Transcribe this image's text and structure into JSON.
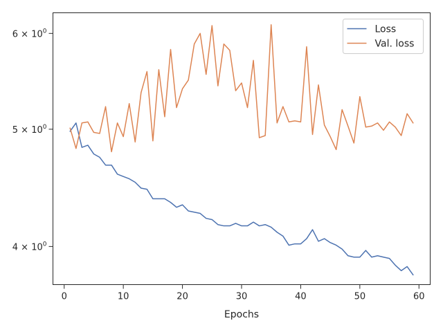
{
  "chart_data": {
    "type": "line",
    "title": "",
    "xlabel": "Epochs",
    "ylabel": "",
    "yscale": "log",
    "xlim": [
      -1.9,
      61.9
    ],
    "ylim": [
      3.72,
      6.24
    ],
    "x_ticks": [
      0,
      10,
      20,
      30,
      40,
      50,
      60
    ],
    "y_ticks": [
      {
        "value": 4,
        "mantissa": "4",
        "times": "×",
        "base": "10",
        "exponent": "0"
      },
      {
        "value": 5,
        "mantissa": "5",
        "times": "×",
        "base": "10",
        "exponent": "0"
      },
      {
        "value": 6,
        "mantissa": "6",
        "times": "×",
        "base": "10",
        "exponent": "0"
      }
    ],
    "grid": false,
    "legend": "top-right",
    "x": [
      1,
      2,
      3,
      4,
      5,
      6,
      7,
      8,
      9,
      10,
      11,
      12,
      13,
      14,
      15,
      16,
      17,
      18,
      19,
      20,
      21,
      22,
      23,
      24,
      25,
      26,
      27,
      28,
      29,
      30,
      31,
      32,
      33,
      34,
      35,
      36,
      37,
      38,
      39,
      40,
      41,
      42,
      43,
      44,
      45,
      46,
      47,
      48,
      49,
      50,
      51,
      52,
      53,
      54,
      55,
      56,
      57,
      58,
      59
    ],
    "series": [
      {
        "name": "Loss",
        "color": "#4c72b0",
        "values": [
          4.98,
          5.06,
          4.83,
          4.85,
          4.77,
          4.74,
          4.67,
          4.67,
          4.59,
          4.57,
          4.55,
          4.52,
          4.47,
          4.46,
          4.38,
          4.38,
          4.38,
          4.35,
          4.31,
          4.33,
          4.28,
          4.27,
          4.26,
          4.22,
          4.21,
          4.17,
          4.16,
          4.16,
          4.18,
          4.16,
          4.16,
          4.19,
          4.16,
          4.17,
          4.15,
          4.11,
          4.08,
          4.01,
          4.02,
          4.02,
          4.06,
          4.13,
          4.04,
          4.06,
          4.03,
          4.01,
          3.98,
          3.93,
          3.92,
          3.92,
          3.97,
          3.92,
          3.93,
          3.92,
          3.91,
          3.86,
          3.82,
          3.85,
          3.79
        ]
      },
      {
        "name": "Val. loss",
        "color": "#dd8452",
        "values": [
          5.01,
          4.82,
          5.06,
          5.07,
          4.97,
          4.96,
          5.22,
          4.79,
          5.06,
          4.93,
          5.25,
          4.88,
          5.36,
          5.58,
          4.89,
          5.6,
          5.12,
          5.82,
          5.21,
          5.4,
          5.49,
          5.88,
          6.0,
          5.55,
          6.09,
          5.43,
          5.88,
          5.81,
          5.38,
          5.46,
          5.21,
          5.7,
          4.92,
          4.94,
          6.1,
          5.06,
          5.22,
          5.07,
          5.08,
          5.07,
          5.85,
          4.95,
          5.44,
          5.04,
          4.93,
          4.81,
          5.19,
          5.03,
          4.87,
          5.32,
          5.02,
          5.03,
          5.06,
          4.99,
          5.07,
          5.02,
          4.94,
          5.15,
          5.06
        ]
      }
    ]
  }
}
